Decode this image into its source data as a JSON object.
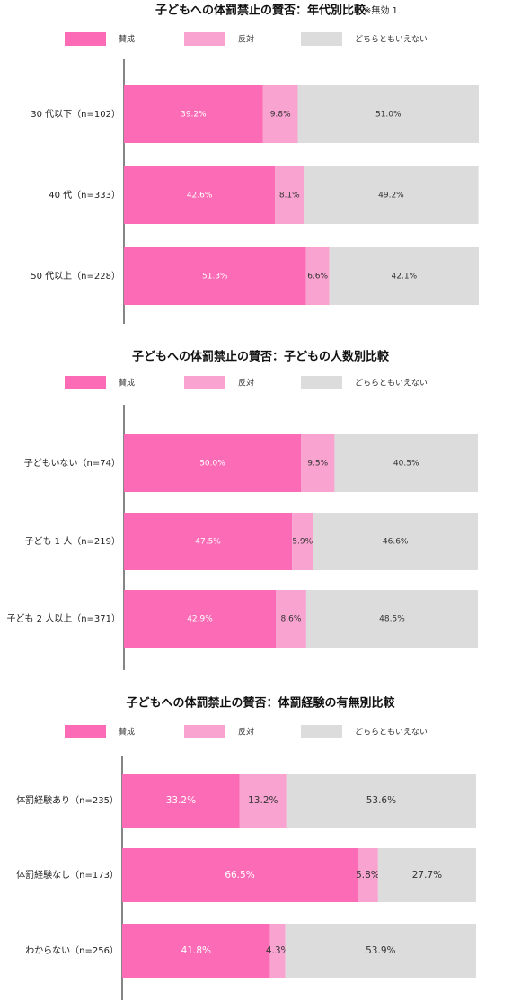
{
  "colors": {
    "agree": "#fc6bb5",
    "disagree": "#f9a3d0",
    "neither": "#dcdcdc",
    "axis": "#444444",
    "label_dark": "#333333",
    "label_light": "#ffffff"
  },
  "legend": [
    "賛成",
    "反対",
    "どちらともいえない"
  ],
  "chart_data": [
    {
      "type": "bar",
      "stacked": true,
      "orientation": "horizontal",
      "title": "子どもへの体罰禁止の賛否：年代別比較",
      "note": "※無効 1",
      "categories": [
        "30 代以下（n=102）",
        "40 代（n=333）",
        "50 代以上（n=228）"
      ],
      "series": [
        {
          "name": "賛成",
          "values": [
            39.2,
            42.6,
            51.3
          ],
          "labels": [
            "39.2%",
            "42.6%",
            "51.3%"
          ]
        },
        {
          "name": "反対",
          "values": [
            9.8,
            8.1,
            6.6
          ],
          "labels": [
            "9.8%",
            "8.1%",
            "6.6%"
          ]
        },
        {
          "name": "どちらともいえない",
          "values": [
            51.0,
            49.2,
            42.1
          ],
          "labels": [
            "51.0%",
            "49.2%",
            "42.1%"
          ]
        }
      ],
      "xlim": [
        0,
        100
      ]
    },
    {
      "type": "bar",
      "stacked": true,
      "orientation": "horizontal",
      "title": "子どもへの体罰禁止の賛否：子どもの人数別比較",
      "categories": [
        "子どもいない（n=74）",
        "子ども 1 人（n=219）",
        "子ども 2 人以上（n=371）"
      ],
      "series": [
        {
          "name": "賛成",
          "values": [
            50.0,
            47.5,
            42.9
          ],
          "labels": [
            "50.0%",
            "47.5%",
            "42.9%"
          ]
        },
        {
          "name": "反対",
          "values": [
            9.5,
            5.9,
            8.6
          ],
          "labels": [
            "9.5%",
            "5.9%",
            "8.6%"
          ]
        },
        {
          "name": "どちらともいえない",
          "values": [
            40.5,
            46.6,
            48.5
          ],
          "labels": [
            "40.5%",
            "46.6%",
            "48.5%"
          ]
        }
      ],
      "xlim": [
        0,
        100
      ]
    },
    {
      "type": "bar",
      "stacked": true,
      "orientation": "horizontal",
      "title": "子どもへの体罰禁止の賛否：体罰経験の有無別比較",
      "categories": [
        "体罰経験あり（n=235）",
        "体罰経験なし（n=173）",
        "わからない（n=256）"
      ],
      "series": [
        {
          "name": "賛成",
          "values": [
            33.2,
            66.5,
            41.8
          ],
          "labels": [
            "33.2%",
            "66.5%",
            "41.8%"
          ]
        },
        {
          "name": "反対",
          "values": [
            13.2,
            5.8,
            4.3
          ],
          "labels": [
            "13.2%",
            "5.8%",
            "4.3%"
          ]
        },
        {
          "name": "どちらともいえない",
          "values": [
            53.6,
            27.7,
            53.9
          ],
          "labels": [
            "53.6%",
            "27.7%",
            "53.9%"
          ]
        }
      ],
      "xlim": [
        0,
        100
      ]
    }
  ]
}
